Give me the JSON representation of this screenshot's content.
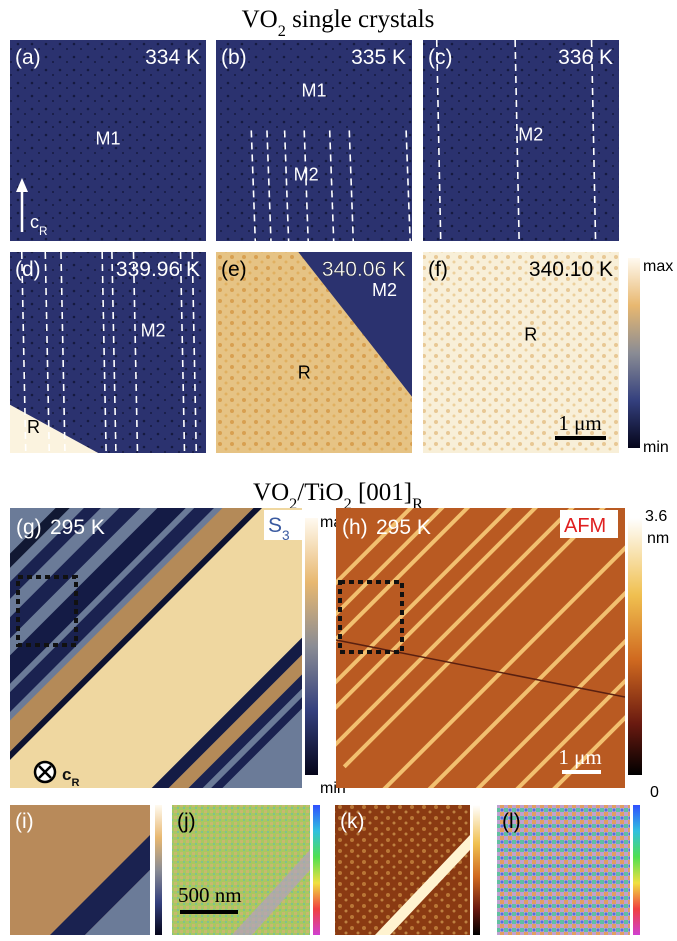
{
  "top_title": {
    "parts": [
      {
        "text": "VO"
      },
      {
        "text": "2",
        "sub": true
      },
      {
        "text": " single crystals"
      }
    ]
  },
  "crystal_panels": [
    {
      "label": "(a)",
      "temperature": "334 K",
      "phases": [
        "M1"
      ]
    },
    {
      "label": "(b)",
      "temperature": "335 K",
      "phases": [
        "M1",
        "M2"
      ]
    },
    {
      "label": "(c)",
      "temperature": "336 K",
      "phases": [
        "M2"
      ]
    },
    {
      "label": "(d)",
      "temperature": "339.96 K",
      "phases": [
        "M2",
        "R"
      ]
    },
    {
      "label": "(e)",
      "temperature": "340.06 K",
      "phases": [
        "M2",
        "R"
      ]
    },
    {
      "label": "(f)",
      "temperature": "340.10 K",
      "phases": [
        "R"
      ]
    }
  ],
  "crystal_axis": {
    "parts": [
      {
        "text": "c"
      },
      {
        "text": "R",
        "sub": true
      }
    ]
  },
  "crystal_colorbar": {
    "max": "max",
    "min": "min"
  },
  "crystal_scale_bar": "1 μm",
  "film_title": {
    "parts": [
      {
        "text": "VO"
      },
      {
        "text": "2",
        "sub": true
      },
      {
        "text": "/TiO"
      },
      {
        "text": "2",
        "sub": true
      },
      {
        "text": " [001]"
      },
      {
        "text": "R",
        "sub": true
      }
    ]
  },
  "film_panels": [
    {
      "label": "(g)",
      "temperature": "295 K",
      "channel": {
        "parts": [
          {
            "text": "S"
          },
          {
            "text": "3",
            "sub": true
          }
        ]
      },
      "colorbar": {
        "max": "max",
        "min": "min"
      }
    },
    {
      "label": "(h)",
      "temperature": "295 K",
      "channel": {
        "parts": [
          {
            "text": "AFM"
          }
        ]
      },
      "colorbar": {
        "max": "3.6",
        "max_unit": "nm",
        "min": "0"
      },
      "scale_bar": "1 μm"
    }
  ],
  "film_axis": {
    "parts": [
      {
        "text": "c"
      },
      {
        "text": "R",
        "sub": true
      }
    ]
  },
  "zoom_panels": [
    {
      "label": "(i)"
    },
    {
      "label": "(j)",
      "scale_bar": "500 nm"
    },
    {
      "label": "(k)"
    },
    {
      "label": "(l)"
    }
  ]
}
